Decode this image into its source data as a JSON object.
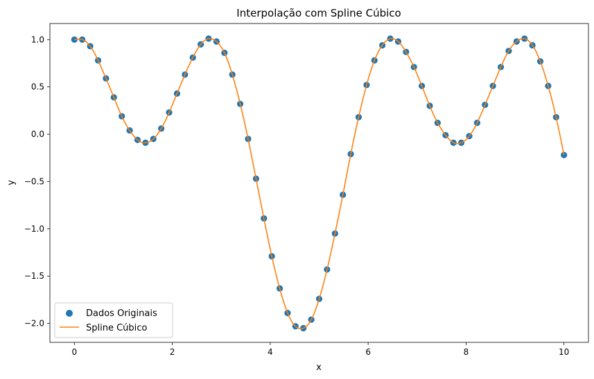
{
  "chart_data": {
    "type": "scatter",
    "title": "Interpolação com Spline Cúbico",
    "xlabel": "x",
    "ylabel": "y",
    "xlim": [
      -0.5,
      10.5
    ],
    "ylim": [
      -2.2,
      1.17
    ],
    "xticks": [
      0,
      2,
      4,
      6,
      8,
      10
    ],
    "xtick_labels": [
      "0",
      "2",
      "4",
      "6",
      "8",
      "10"
    ],
    "yticks": [
      1.0,
      0.5,
      0.0,
      -0.5,
      -1.0,
      -1.5,
      -2.0
    ],
    "ytick_labels": [
      "1.0",
      "0.5",
      "0.0",
      "−0.5",
      "−1.0",
      "−1.5",
      "−2.0"
    ],
    "grid": false,
    "legend_position": "lower-left",
    "series": [
      {
        "name": "Dados Originais",
        "kind": "scatter",
        "color": "#1f77b4",
        "x": [
          0,
          0.161,
          0.323,
          0.484,
          0.645,
          0.806,
          0.968,
          1.129,
          1.29,
          1.452,
          1.613,
          1.774,
          1.935,
          2.097,
          2.258,
          2.419,
          2.581,
          2.742,
          2.903,
          3.065,
          3.226,
          3.387,
          3.548,
          3.71,
          3.871,
          4.032,
          4.194,
          4.355,
          4.516,
          4.677,
          4.839,
          5.0,
          5.161,
          5.323,
          5.484,
          5.645,
          5.806,
          5.968,
          6.129,
          6.29,
          6.452,
          6.613,
          6.774,
          6.935,
          7.097,
          7.258,
          7.419,
          7.581,
          7.742,
          7.903,
          8.065,
          8.226,
          8.387,
          8.548,
          8.71,
          8.871,
          9.032,
          9.194,
          9.355,
          9.516,
          9.677,
          9.839,
          10.0
        ],
        "y": [
          1.0,
          1.0,
          0.93,
          0.78,
          0.59,
          0.39,
          0.19,
          0.04,
          -0.06,
          -0.09,
          -0.05,
          0.06,
          0.23,
          0.43,
          0.63,
          0.81,
          0.95,
          1.01,
          0.98,
          0.86,
          0.63,
          0.32,
          -0.05,
          -0.47,
          -0.89,
          -1.29,
          -1.63,
          -1.89,
          -2.03,
          -2.05,
          -1.96,
          -1.74,
          -1.43,
          -1.05,
          -0.64,
          -0.21,
          0.18,
          0.52,
          0.78,
          0.94,
          1.01,
          0.98,
          0.87,
          0.71,
          0.51,
          0.3,
          0.12,
          -0.01,
          -0.09,
          -0.09,
          -0.02,
          0.12,
          0.31,
          0.51,
          0.71,
          0.88,
          0.98,
          1.01,
          0.94,
          0.77,
          0.51,
          0.18,
          -0.22
        ]
      },
      {
        "name": "Spline Cúbico",
        "kind": "line",
        "color": "#ff7f0e"
      }
    ]
  }
}
